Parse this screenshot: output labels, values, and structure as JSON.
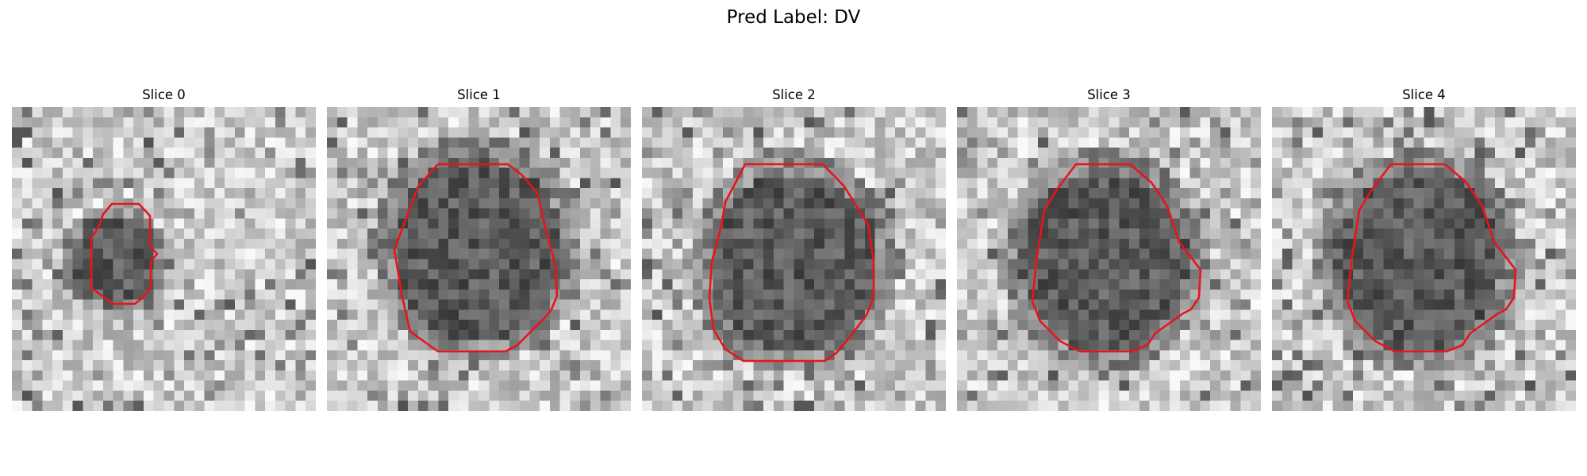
{
  "figure": {
    "title": "Pred Label: DV"
  },
  "colors": {
    "contour": "#e8141a",
    "background": "#ffffff"
  },
  "panels": [
    {
      "title": "Slice 0",
      "image": "grayscale-lesion-patch",
      "contour": "red-segmentation-outline"
    },
    {
      "title": "Slice 1",
      "image": "grayscale-lesion-patch",
      "contour": "red-segmentation-outline"
    },
    {
      "title": "Slice 2",
      "image": "grayscale-lesion-patch",
      "contour": "red-segmentation-outline"
    },
    {
      "title": "Slice 3",
      "image": "grayscale-lesion-patch",
      "contour": "red-segmentation-outline"
    },
    {
      "title": "Slice 4",
      "image": "grayscale-lesion-patch",
      "contour": "red-segmentation-outline"
    }
  ]
}
